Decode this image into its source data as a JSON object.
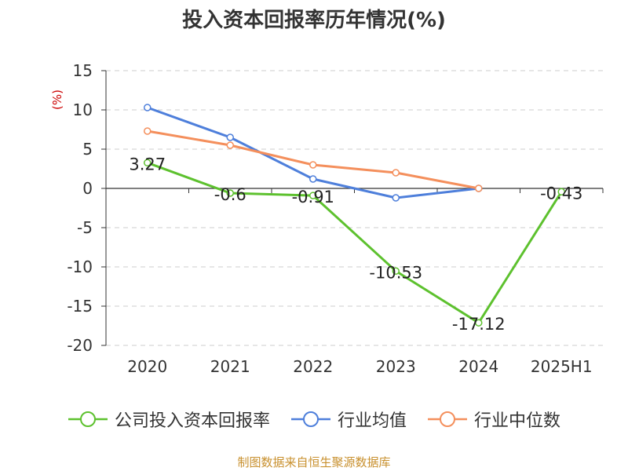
{
  "chart_data": {
    "type": "line",
    "title": "投入资本回报率历年情况(%)",
    "ylabel": "(%)",
    "categories": [
      "2020",
      "2021",
      "2022",
      "2023",
      "2024",
      "2025H1"
    ],
    "ylim": [
      -20,
      15
    ],
    "yticks": [
      "15",
      "10",
      "5",
      "0",
      "-5",
      "-10",
      "-15",
      "-20"
    ],
    "grid": true,
    "legend_position": "bottom",
    "series": [
      {
        "name": "公司投入资本回报率",
        "color": "#5dc12e",
        "values": [
          3.27,
          -0.6,
          -0.91,
          -10.53,
          -17.12,
          -0.43
        ],
        "labels": [
          "3.27",
          "-0.6",
          "-0.91",
          "-10.53",
          "-17.12",
          "-0.43"
        ]
      },
      {
        "name": "行业均值",
        "color": "#4e7fdb",
        "values": [
          10.3,
          6.5,
          1.2,
          -1.2,
          0.0,
          null
        ]
      },
      {
        "name": "行业中位数",
        "color": "#f48f5c",
        "values": [
          7.3,
          5.5,
          3.0,
          2.0,
          0.0,
          null
        ]
      }
    ]
  },
  "source": "制图数据来自恒生聚源数据库"
}
